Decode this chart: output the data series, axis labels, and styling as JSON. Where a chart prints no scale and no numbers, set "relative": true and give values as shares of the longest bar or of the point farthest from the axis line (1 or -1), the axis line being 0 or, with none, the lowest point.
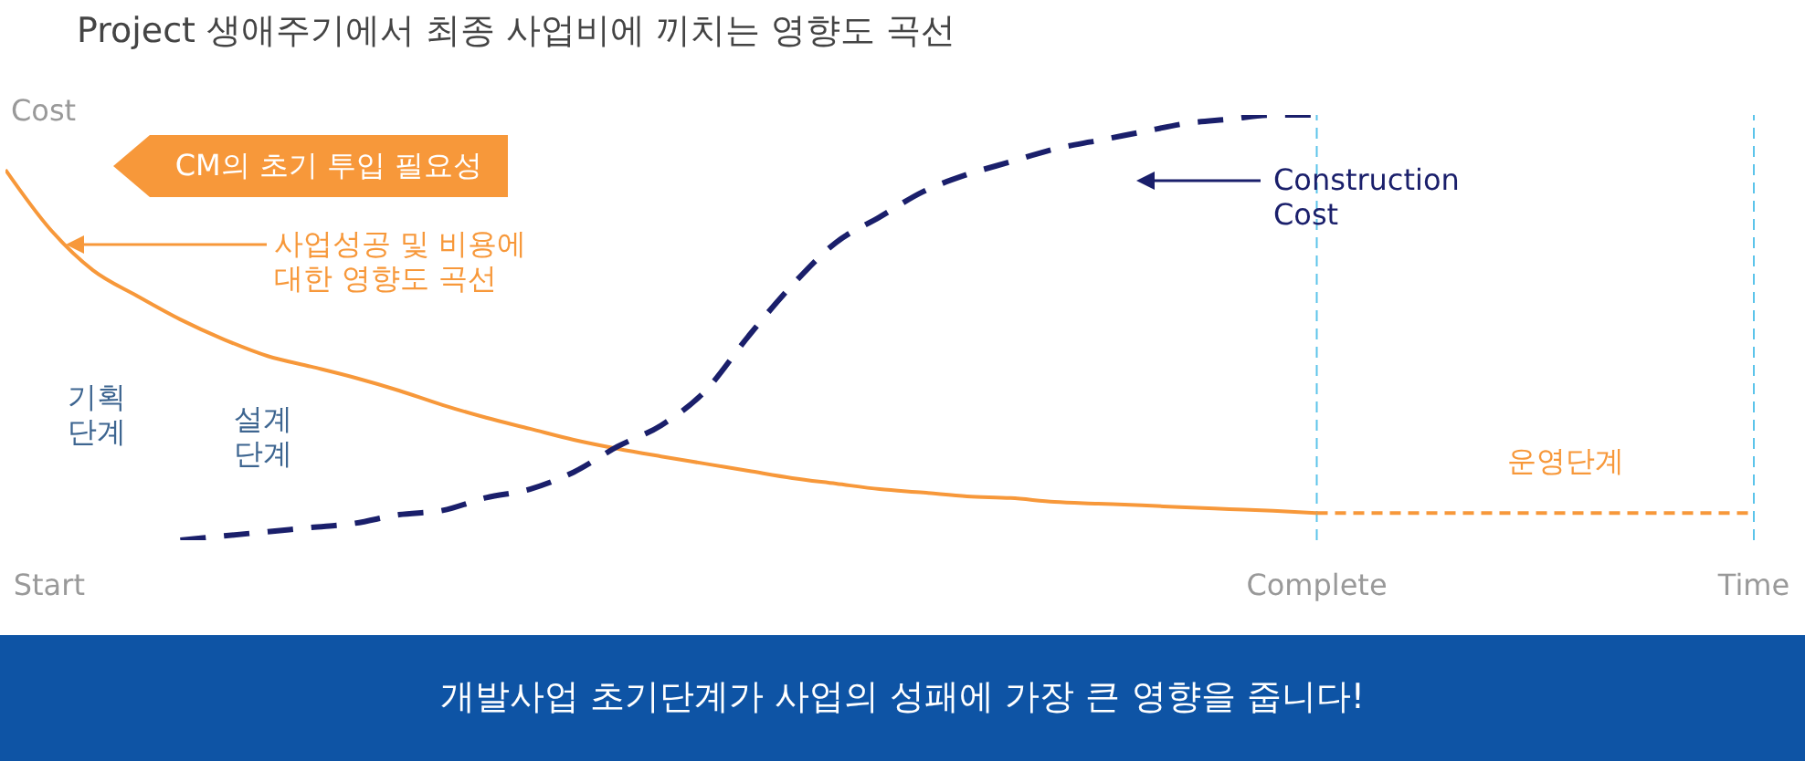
{
  "chart_data": {
    "type": "line",
    "relative": true,
    "title": "Project  생애주기에서 최종 사업비에 끼치는 영향도 곡선",
    "ylabel": "Cost",
    "categories": [
      null,
      "Start",
      null,
      null,
      null,
      null,
      null,
      null,
      null,
      null,
      null,
      null,
      null,
      null,
      null,
      null,
      null,
      null,
      null,
      null,
      null,
      null,
      null,
      null,
      null,
      null,
      null,
      null,
      null,
      null,
      "Complete",
      null,
      null,
      null,
      null,
      null,
      null,
      null,
      null,
      null,
      "Time"
    ],
    "series": [
      {
        "name": "사업성공 및 비용에\n대한 영향도 곡선",
        "color": "#f7983a",
        "line_style": "solid",
        "values": [
          0.871,
          0.734,
          0.635,
          0.575,
          0.519,
          0.472,
          0.433,
          0.408,
          0.382,
          0.352,
          0.318,
          0.288,
          0.262,
          0.236,
          0.215,
          0.197,
          0.18,
          0.163,
          0.146,
          0.133,
          0.12,
          0.112,
          0.103,
          0.099,
          0.09,
          0.086,
          0.082,
          0.077,
          0.073,
          0.069,
          0.064,
          null,
          null,
          null,
          null,
          null,
          null,
          null,
          null,
          null,
          null
        ]
      },
      {
        "name": "Construction\nCost",
        "color": "#1a1f6b",
        "line_style": "dashed",
        "values": [
          null,
          null,
          null,
          null,
          0,
          0.01,
          0.02,
          0.03,
          0.04,
          0.06,
          0.07,
          0.1,
          0.12,
          0.16,
          0.22,
          0.27,
          0.35,
          0.48,
          0.6,
          0.7,
          0.76,
          0.82,
          0.86,
          0.89,
          0.92,
          0.94,
          0.96,
          0.98,
          0.99,
          1.0,
          1.0,
          null,
          null,
          null,
          null,
          null,
          null,
          null,
          null,
          null,
          null
        ]
      },
      {
        "color": "#f7983a",
        "line_style": "dashed",
        "values": [
          null,
          null,
          null,
          null,
          null,
          null,
          null,
          null,
          null,
          null,
          null,
          null,
          null,
          null,
          null,
          null,
          null,
          null,
          null,
          null,
          null,
          null,
          null,
          null,
          null,
          null,
          null,
          null,
          null,
          null,
          0.064,
          0.064,
          0.064,
          0.064,
          0.064,
          0.064,
          0.064,
          0.064,
          0.064,
          0.064,
          0.064
        ]
      }
    ],
    "ref_lines": [
      {
        "axis": "x",
        "value": "Complete",
        "color": "#5cc4ea",
        "line_style": "dashed"
      },
      {
        "axis": "x",
        "value": "Time",
        "color": "#5cc4ea",
        "line_style": "dashed"
      }
    ],
    "annotations": [
      "CM의 초기 투입 필요성",
      "기획\n단계",
      "설계\n단계",
      "운영단계",
      "개발사업 초기단계가 사업의 성패에 가장 큰 영향을 줍니다!"
    ]
  }
}
